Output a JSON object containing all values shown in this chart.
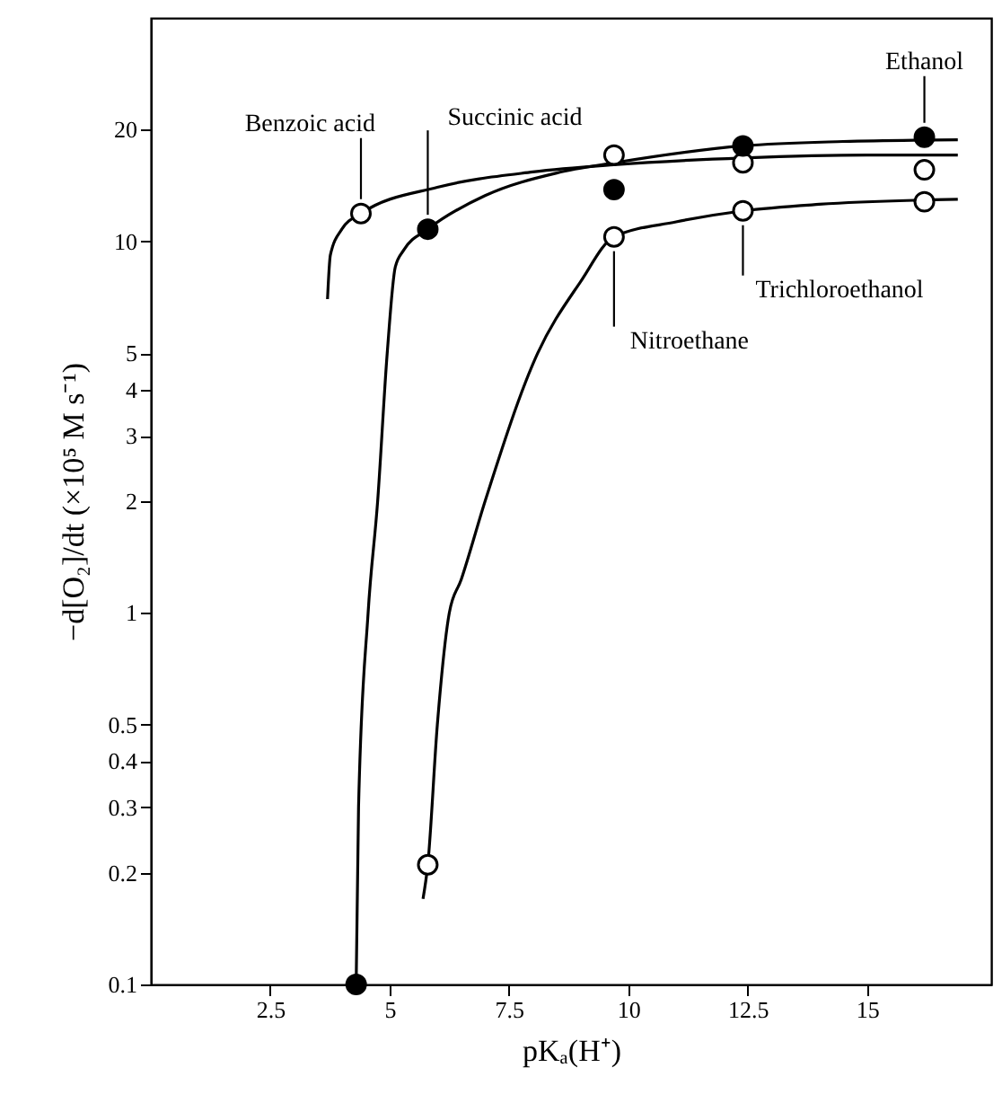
{
  "chart_data": {
    "type": "scatter",
    "xlabel": "pKₐ(H⁺)",
    "ylabel": "−d[O₂]/dt (×10⁵ M s⁻¹)",
    "log": "y",
    "xlim": [
      0,
      17.6
    ],
    "ylim": [
      0.1,
      40
    ],
    "xticks": [
      2.5,
      5,
      7.5,
      10,
      12.5,
      15
    ],
    "yticks": [
      0.1,
      0.2,
      0.3,
      0.4,
      0.5,
      1,
      2,
      3,
      4,
      5,
      10,
      20
    ],
    "grid": false,
    "series": [
      {
        "marker": "circle",
        "color": "#ffffff",
        "x": [
          4.4,
          9.7,
          12.4,
          16.2
        ],
        "values": [
          11.9,
          17.1,
          16.3,
          15.6
        ]
      },
      {
        "marker": "circle",
        "color": "#000000",
        "x": [
          4.3,
          5.8,
          9.7,
          12.4,
          16.2
        ],
        "values": [
          0.1,
          10.8,
          13.8,
          18.1,
          19.1
        ]
      },
      {
        "marker": "circle",
        "color": "#ffffff",
        "x": [
          5.8,
          9.7,
          12.4,
          16.2
        ],
        "values": [
          0.21,
          10.3,
          12.1,
          12.8
        ]
      },
      {
        "type": "line",
        "marker": "none",
        "color": "#000000",
        "x": [
          3.7,
          3.76,
          4.0,
          4.4,
          6.0,
          8.0,
          9.7,
          12.4,
          15.0,
          16.9
        ],
        "values": [
          7.0,
          9.2,
          10.8,
          11.9,
          14.0,
          15.4,
          16.1,
          16.8,
          17.1,
          17.1
        ]
      },
      {
        "type": "line",
        "marker": "none",
        "color": "#000000",
        "x": [
          4.3,
          4.35,
          4.55,
          4.75,
          4.95,
          5.12,
          5.3,
          5.8,
          7.0,
          8.5,
          9.7,
          12.4,
          14.5,
          16.9
        ],
        "values": [
          0.1,
          0.3,
          1,
          2,
          5,
          8.55,
          9.5,
          10.8,
          13.3,
          15.3,
          16.3,
          18.1,
          18.6,
          18.8
        ]
      },
      {
        "type": "line",
        "marker": "none",
        "color": "#000000",
        "x": [
          5.7,
          5.8,
          6.0,
          6.25,
          6.5,
          7.0,
          8.1,
          9.0,
          9.7,
          11.0,
          12.4,
          14.0,
          16.9
        ],
        "values": [
          0.17,
          0.21,
          0.5,
          1,
          1.23,
          2,
          5,
          7.8,
          10.3,
          11.3,
          12.1,
          12.6,
          13.0
        ]
      }
    ],
    "annotations": [
      {
        "text": "Benzoic acid",
        "x": 4.4,
        "y": 11.9
      },
      {
        "text": "Succinic acid",
        "x": 5.8,
        "y": 10.8
      },
      {
        "text": "Ethanol",
        "x": 16.2,
        "y": 19.1
      },
      {
        "text": "Trichloroethanol",
        "x": 12.4,
        "y": 12.1
      },
      {
        "text": "Nitroethane",
        "x": 9.7,
        "y": 10.3
      }
    ]
  }
}
